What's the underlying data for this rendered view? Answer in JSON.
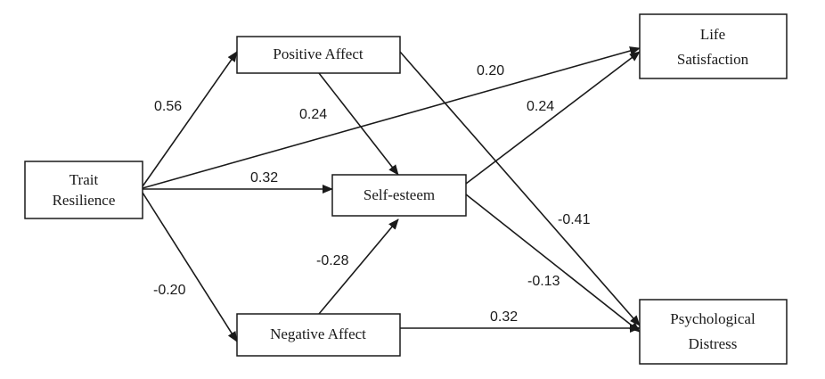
{
  "nodes": {
    "trait_resilience": {
      "lines": [
        "Trait",
        "Resilience"
      ]
    },
    "positive_affect": {
      "lines": [
        "Positive Affect"
      ]
    },
    "negative_affect": {
      "lines": [
        "Negative Affect"
      ]
    },
    "self_esteem": {
      "lines": [
        "Self-esteem"
      ]
    },
    "life_satisfaction": {
      "lines": [
        "Life",
        "Satisfaction"
      ]
    },
    "psychological_distress": {
      "lines": [
        "Psychological",
        "Distress"
      ]
    }
  },
  "paths": [
    {
      "from": "trait_resilience",
      "to": "positive_affect",
      "coefficient": "0.56"
    },
    {
      "from": "trait_resilience",
      "to": "self_esteem",
      "coefficient": "0.32"
    },
    {
      "from": "trait_resilience",
      "to": "negative_affect",
      "coefficient": "-0.20"
    },
    {
      "from": "trait_resilience",
      "to": "life_satisfaction",
      "coefficient": "0.20"
    },
    {
      "from": "positive_affect",
      "to": "self_esteem",
      "coefficient": "0.24"
    },
    {
      "from": "positive_affect",
      "to": "psychological_distress",
      "coefficient": "-0.41"
    },
    {
      "from": "negative_affect",
      "to": "self_esteem",
      "coefficient": "-0.28"
    },
    {
      "from": "negative_affect",
      "to": "psychological_distress",
      "coefficient": "0.32"
    },
    {
      "from": "self_esteem",
      "to": "life_satisfaction",
      "coefficient": "0.24"
    },
    {
      "from": "self_esteem",
      "to": "psychological_distress",
      "coefficient": "-0.13"
    }
  ]
}
